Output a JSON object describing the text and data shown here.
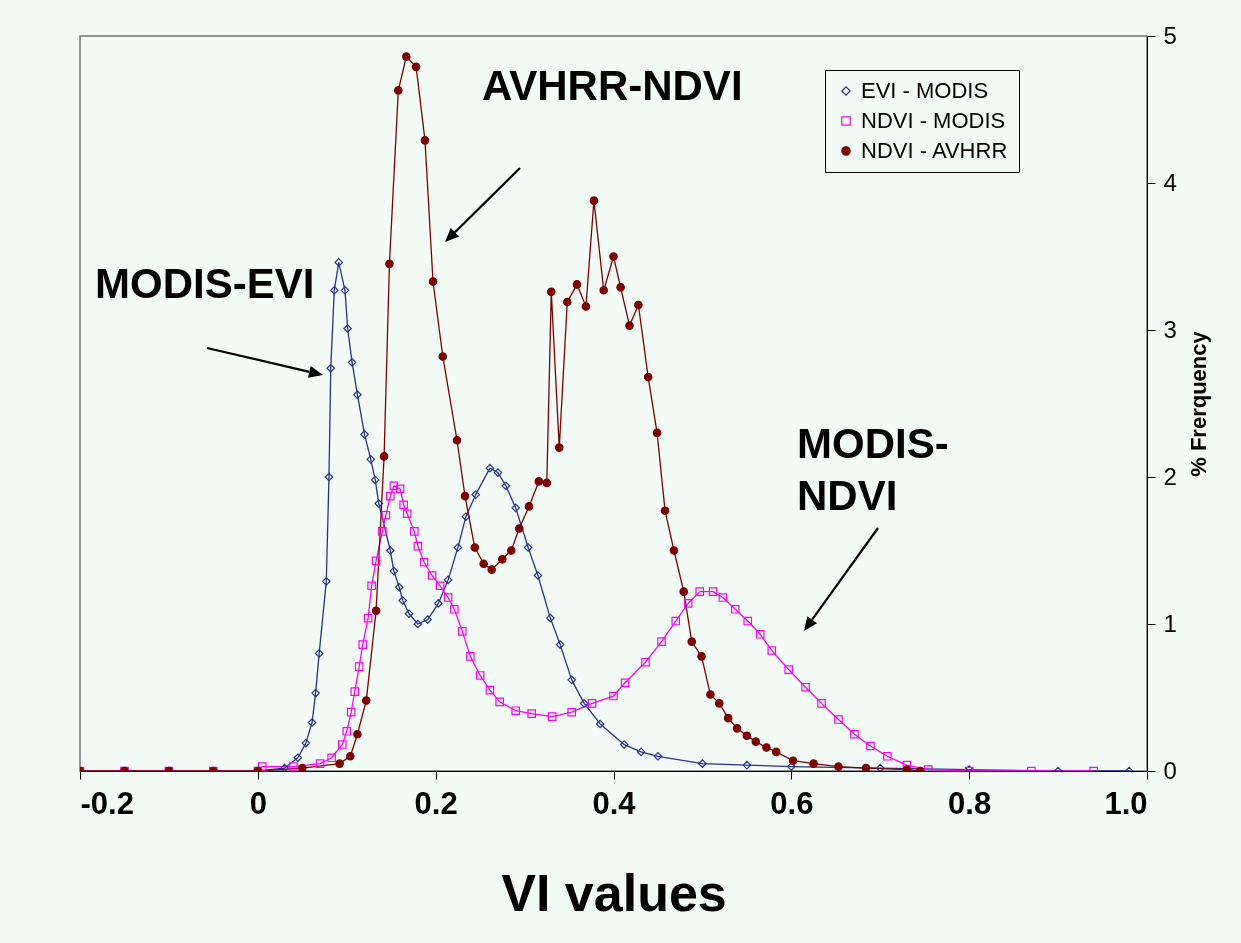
{
  "chart_data": {
    "type": "line",
    "xlabel": "VI values",
    "ylabel": "% Frerquency",
    "xlim": [
      -0.2,
      1.0
    ],
    "xticks": [
      -0.2,
      0,
      0.2,
      0.4,
      0.6,
      0.8,
      {
        "value": 1,
        "label": "1.0"
      }
    ],
    "ylim": [
      0,
      5
    ],
    "yticks": [
      0,
      1,
      2,
      3,
      4,
      5
    ],
    "legend": "top right",
    "series": [
      {
        "name": "EVI - MODIS",
        "color": "#27338f",
        "marker": "diamond",
        "x": [
          0,
          0.03,
          0.045,
          0.054,
          0.061,
          0.065,
          0.069,
          0.077,
          0.08,
          0.082,
          0.086,
          0.091,
          0.098,
          0.101,
          0.106,
          0.112,
          0.12,
          0.127,
          0.132,
          0.136,
          0.149,
          0.153,
          0.159,
          0.163,
          0.17,
          0.18,
          0.191,
          0.203,
          0.214,
          0.225,
          0.234,
          0.245,
          0.261,
          0.27,
          0.279,
          0.29,
          0.304,
          0.315,
          0.329,
          0.34,
          0.353,
          0.367,
          0.385,
          0.412,
          0.431,
          0.45,
          0.5,
          0.55,
          0.6,
          0.7,
          0.8,
          0.9,
          0.98
        ],
        "values": [
          0,
          0.02,
          0.09,
          0.19,
          0.33,
          0.53,
          0.8,
          1.29,
          2.0,
          2.74,
          3.27,
          3.46,
          3.27,
          3.01,
          2.78,
          2.56,
          2.29,
          2.12,
          1.98,
          1.82,
          1.5,
          1.36,
          1.25,
          1.16,
          1.07,
          1.0,
          1.03,
          1.14,
          1.3,
          1.52,
          1.73,
          1.88,
          2.06,
          2.03,
          1.94,
          1.79,
          1.52,
          1.33,
          1.04,
          0.86,
          0.62,
          0.46,
          0.32,
          0.18,
          0.13,
          0.1,
          0.05,
          0.04,
          0.03,
          0.02,
          0.01,
          0,
          0
        ]
      },
      {
        "name": "NDVI - MODIS",
        "color": "#ff00ff",
        "marker": "square",
        "x": [
          -0.2,
          -0.15,
          -0.1,
          -0.05,
          0,
          0.005,
          0.04,
          0.07,
          0.083,
          0.095,
          0.1,
          0.105,
          0.109,
          0.114,
          0.118,
          0.124,
          0.128,
          0.133,
          0.14,
          0.144,
          0.149,
          0.153,
          0.16,
          0.164,
          0.168,
          0.176,
          0.18,
          0.187,
          0.196,
          0.205,
          0.214,
          0.221,
          0.23,
          0.239,
          0.25,
          0.261,
          0.272,
          0.29,
          0.308,
          0.331,
          0.353,
          0.376,
          0.4,
          0.413,
          0.436,
          0.454,
          0.47,
          0.484,
          0.497,
          0.512,
          0.523,
          0.537,
          0.551,
          0.565,
          0.578,
          0.597,
          0.616,
          0.634,
          0.653,
          0.671,
          0.689,
          0.708,
          0.73,
          0.754,
          0.8,
          0.87,
          0.94
        ],
        "values": [
          0,
          0,
          0,
          0,
          0,
          0.03,
          0.03,
          0.05,
          0.09,
          0.18,
          0.27,
          0.4,
          0.54,
          0.71,
          0.86,
          1.04,
          1.26,
          1.43,
          1.63,
          1.74,
          1.87,
          1.94,
          1.92,
          1.81,
          1.75,
          1.63,
          1.53,
          1.42,
          1.33,
          1.26,
          1.18,
          1.1,
          0.95,
          0.78,
          0.65,
          0.55,
          0.47,
          0.41,
          0.39,
          0.37,
          0.4,
          0.46,
          0.51,
          0.6,
          0.74,
          0.88,
          1.02,
          1.14,
          1.22,
          1.22,
          1.18,
          1.1,
          1.02,
          0.93,
          0.82,
          0.69,
          0.57,
          0.46,
          0.35,
          0.25,
          0.17,
          0.1,
          0.04,
          0.01,
          0,
          0,
          0
        ]
      },
      {
        "name": "NDVI - AVHRR",
        "color": "#800000",
        "marker": "circle",
        "x": [
          -0.2,
          -0.15,
          -0.1,
          -0.05,
          0,
          0.05,
          0.092,
          0.104,
          0.112,
          0.122,
          0.133,
          0.142,
          0.148,
          0.158,
          0.167,
          0.178,
          0.188,
          0.197,
          0.208,
          0.224,
          0.233,
          0.244,
          0.254,
          0.263,
          0.275,
          0.285,
          0.294,
          0.305,
          0.316,
          0.325,
          0.33,
          0.339,
          0.348,
          0.359,
          0.369,
          0.378,
          0.389,
          0.4,
          0.408,
          0.418,
          0.428,
          0.439,
          0.449,
          0.458,
          0.468,
          0.479,
          0.488,
          0.499,
          0.509,
          0.519,
          0.529,
          0.539,
          0.55,
          0.56,
          0.572,
          0.583,
          0.602,
          0.625,
          0.653,
          0.684,
          0.73,
          0.745
        ],
        "values": [
          0,
          0,
          0,
          0,
          0,
          0.02,
          0.05,
          0.1,
          0.25,
          0.48,
          1.09,
          2.14,
          3.45,
          4.63,
          4.86,
          4.79,
          4.29,
          3.33,
          2.82,
          2.25,
          1.87,
          1.52,
          1.41,
          1.37,
          1.44,
          1.5,
          1.65,
          1.8,
          1.97,
          1.96,
          3.26,
          2.2,
          3.19,
          3.31,
          3.16,
          3.88,
          3.27,
          3.5,
          3.29,
          3.03,
          3.17,
          2.68,
          2.3,
          1.77,
          1.5,
          1.22,
          0.88,
          0.78,
          0.52,
          0.46,
          0.36,
          0.29,
          0.24,
          0.2,
          0.16,
          0.13,
          0.07,
          0.05,
          0.03,
          0.02,
          0.01,
          0
        ]
      }
    ],
    "annotations": [
      "MODIS-EVI",
      "AVHRR-NDVI",
      "MODIS-\nNDVI"
    ]
  }
}
